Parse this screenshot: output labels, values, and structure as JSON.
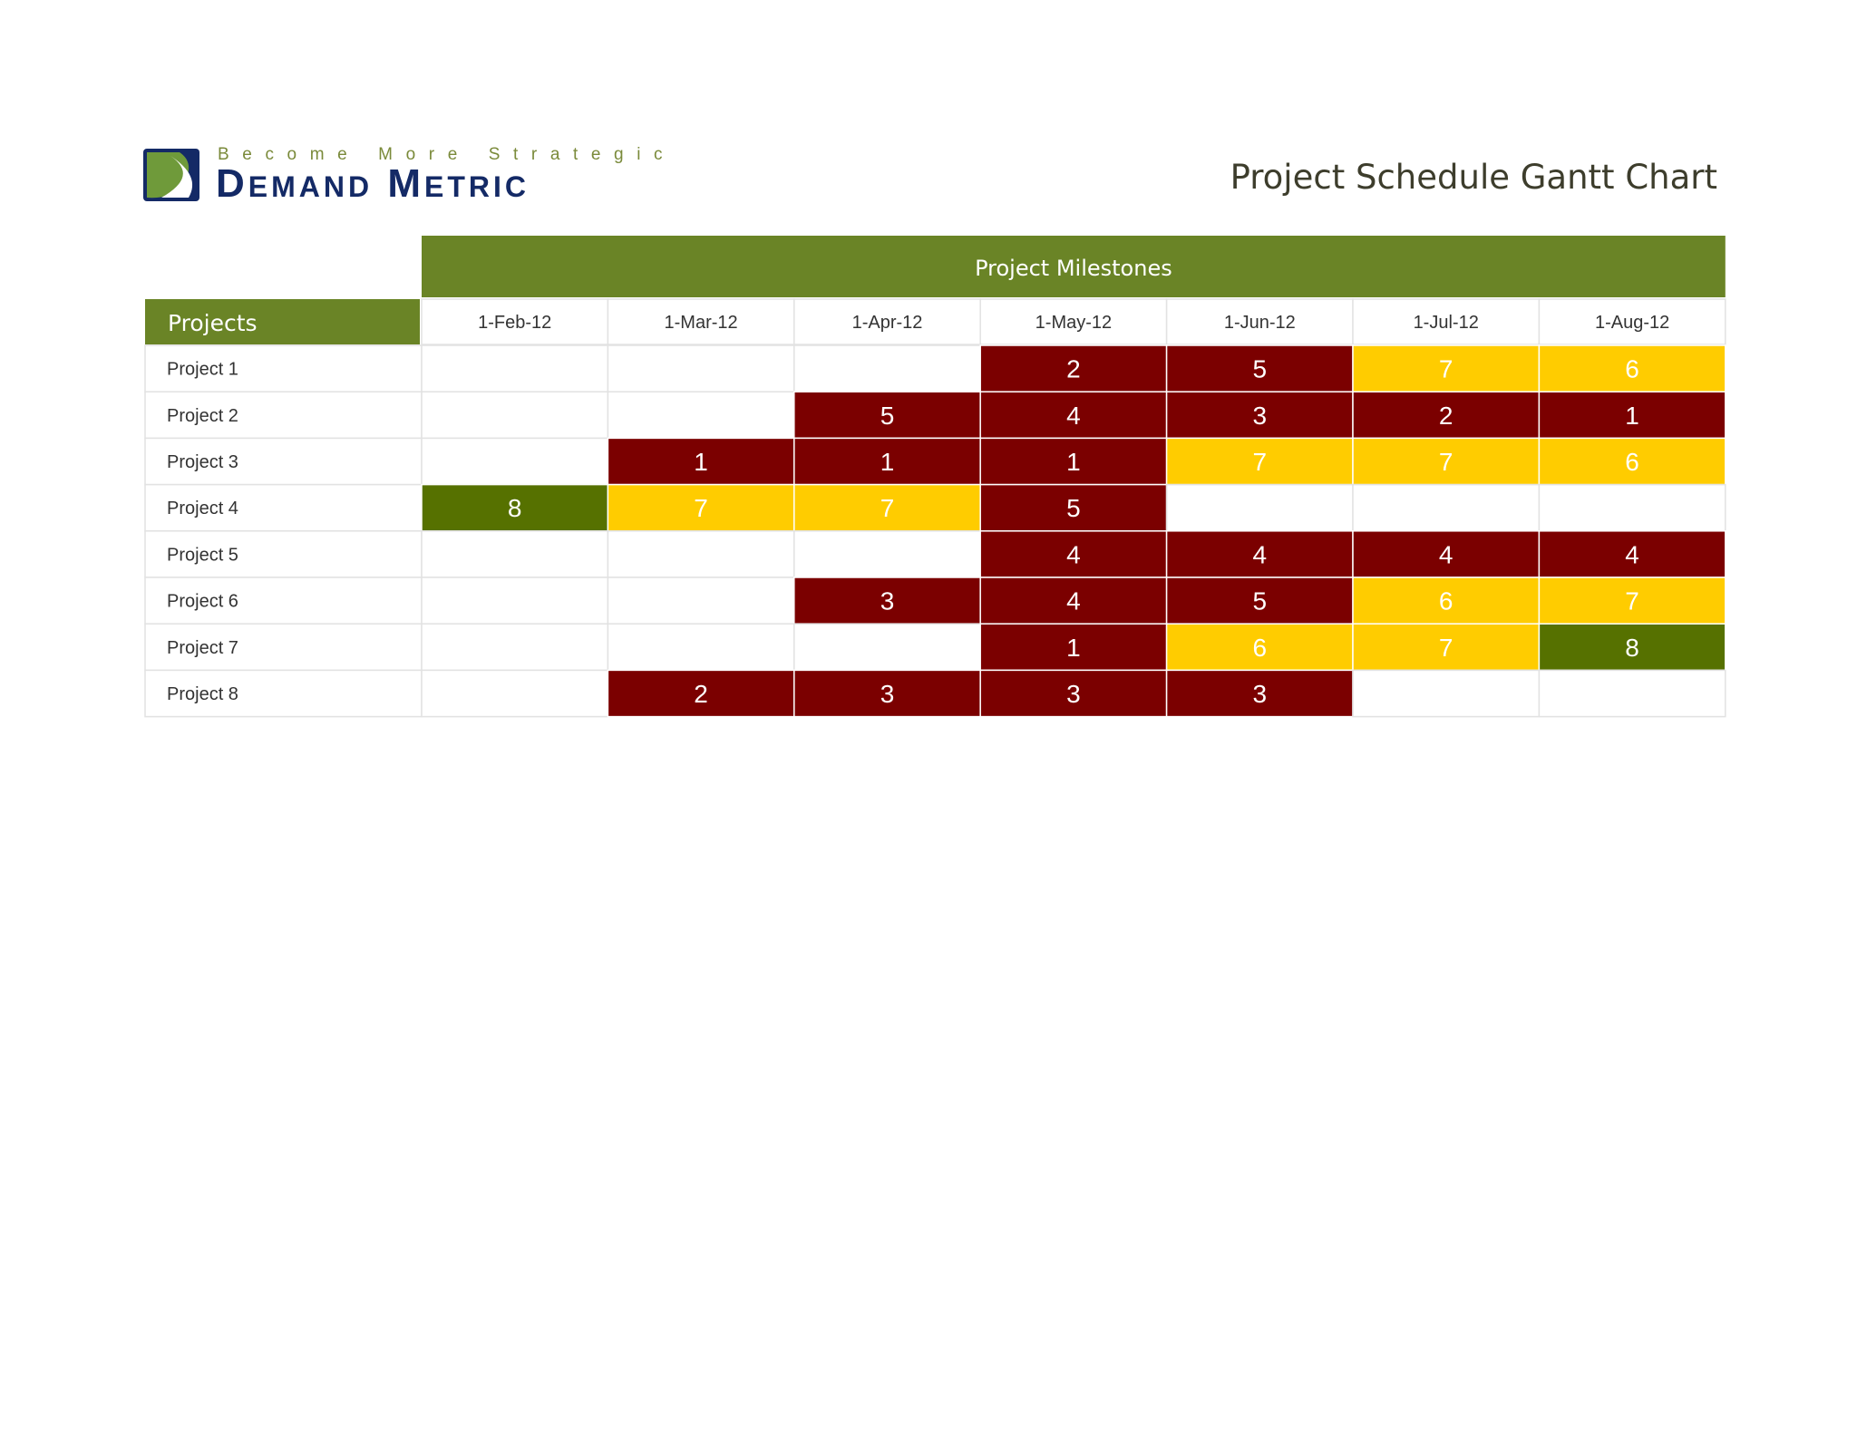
{
  "brand": {
    "tagline": "Become More Strategic",
    "name_parts": [
      {
        "text": "D",
        "small": false
      },
      {
        "text": "EMAND",
        "small": true
      },
      {
        "text": " M",
        "small": false
      },
      {
        "text": "ETRIC",
        "small": true
      }
    ]
  },
  "page": {
    "title": "Project Schedule Gantt Chart"
  },
  "colors": {
    "header_green": "#6a8426",
    "dark_red": "#7b0000",
    "yellow": "#ffcc00",
    "dark_green": "#567100",
    "grid": "#e2e2e2",
    "logo_navy": "#142a66"
  },
  "chart_data": {
    "type": "table",
    "header": "Project Milestones",
    "row_header": "Projects",
    "columns": [
      "1-Feb-12",
      "1-Mar-12",
      "1-Apr-12",
      "1-May-12",
      "1-Jun-12",
      "1-Jul-12",
      "1-Aug-12"
    ],
    "rows": [
      {
        "label": "Project 1",
        "values": [
          null,
          null,
          null,
          2,
          5,
          7,
          6
        ]
      },
      {
        "label": "Project 2",
        "values": [
          null,
          null,
          5,
          4,
          3,
          2,
          1
        ]
      },
      {
        "label": "Project 3",
        "values": [
          null,
          1,
          1,
          1,
          7,
          7,
          6
        ]
      },
      {
        "label": "Project 4",
        "values": [
          8,
          7,
          7,
          5,
          null,
          null,
          null
        ]
      },
      {
        "label": "Project 5",
        "values": [
          null,
          null,
          null,
          4,
          4,
          4,
          4
        ]
      },
      {
        "label": "Project 6",
        "values": [
          null,
          null,
          3,
          4,
          5,
          6,
          7
        ]
      },
      {
        "label": "Project 7",
        "values": [
          null,
          null,
          null,
          1,
          6,
          7,
          8
        ]
      },
      {
        "label": "Project 8",
        "values": [
          null,
          2,
          3,
          3,
          3,
          null,
          null
        ]
      }
    ]
  }
}
